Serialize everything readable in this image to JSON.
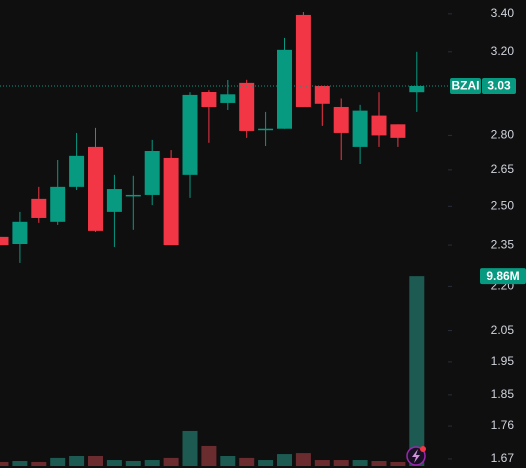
{
  "chart_data": {
    "type": "candlestick",
    "scale": "log",
    "ylim": [
      1.646,
      3.476
    ],
    "yticks": [
      {
        "value": 3.4,
        "label": "3.40"
      },
      {
        "value": 3.2,
        "label": "3.20"
      },
      {
        "value": 2.8,
        "label": "2.80"
      },
      2.65,
      {
        "value": 2.5,
        "label": "2.50"
      },
      2.35,
      {
        "value": 2.2,
        "label": "2.20"
      },
      2.05,
      1.95,
      1.85,
      1.76,
      1.67
    ],
    "symbol": "BZAI",
    "up_color": "#089981",
    "down_color": "#f23645",
    "open": [
      2.381,
      2.354,
      2.53,
      2.439,
      2.579,
      2.749,
      2.478,
      2.545,
      2.546,
      2.701,
      2.629,
      3.001,
      2.949,
      3.045,
      2.825,
      2.83,
      3.394,
      3.03,
      2.93,
      2.749,
      2.89,
      2.85,
      3.0
    ],
    "high": [
      2.381,
      2.478,
      2.579,
      2.692,
      2.811,
      2.834,
      2.629,
      2.625,
      2.78,
      2.735,
      3.0,
      3.01,
      3.059,
      3.06,
      2.907,
      3.272,
      3.41,
      3.03,
      2.97,
      2.94,
      3.0,
      2.85,
      3.2
    ],
    "low": [
      2.35,
      2.284,
      2.435,
      2.427,
      2.566,
      2.4,
      2.343,
      2.408,
      2.505,
      2.35,
      2.534,
      2.767,
      2.916,
      2.789,
      2.753,
      2.83,
      2.93,
      2.843,
      2.692,
      2.675,
      2.749,
      2.749,
      2.907
    ],
    "close": [
      2.35,
      2.439,
      2.454,
      2.579,
      2.71,
      2.404,
      2.57,
      2.546,
      2.731,
      2.35,
      2.987,
      2.93,
      2.99,
      2.82,
      2.83,
      3.21,
      2.93,
      2.945,
      2.811,
      2.913,
      2.8,
      2.789,
      3.03
    ],
    "volume": {
      "y2lim": [
        0,
        24200000
      ],
      "up_color": "#1d5a52",
      "down_color": "#6b2c2f",
      "values": [
        210000,
        260000,
        210000,
        420000,
        520000,
        520000,
        310000,
        260000,
        310000,
        420000,
        1820000,
        1040000,
        520000,
        420000,
        310000,
        620000,
        670000,
        310000,
        310000,
        310000,
        260000,
        210000,
        9860000
      ],
      "value_labels": [
        null,
        null,
        null,
        null,
        null,
        null,
        null,
        null,
        null,
        null,
        null,
        null,
        null,
        null,
        null,
        null,
        null,
        null,
        null,
        null,
        null,
        null,
        "9.86M"
      ]
    }
  }
}
